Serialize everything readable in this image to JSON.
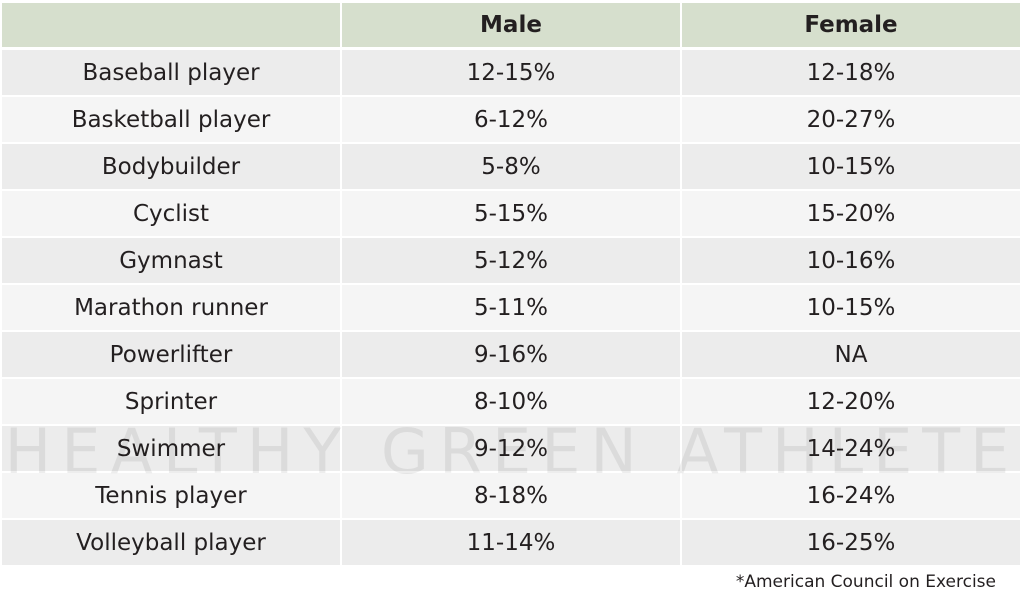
{
  "table": {
    "columns": [
      "Male",
      "Female"
    ],
    "rows": [
      [
        "Baseball player",
        "12-15%",
        "12-18%"
      ],
      [
        "Basketball player",
        "6-12%",
        "20-27%"
      ],
      [
        "Bodybuilder",
        "5-8%",
        "10-15%"
      ],
      [
        "Cyclist",
        "5-15%",
        "15-20%"
      ],
      [
        "Gymnast",
        "5-12%",
        "10-16%"
      ],
      [
        "Marathon runner",
        "5-11%",
        "10-15%"
      ],
      [
        "Powerlifter",
        "9-16%",
        "NA"
      ],
      [
        "Sprinter",
        "8-10%",
        "12-20%"
      ],
      [
        "Swimmer",
        "9-12%",
        "14-24%"
      ],
      [
        "Tennis player",
        "8-18%",
        "16-24%"
      ],
      [
        "Volleyball player",
        "11-14%",
        "16-25%"
      ]
    ]
  },
  "watermark": "HEALTHY GREEN ATHLETE",
  "footnote": "*American Council on Exercise"
}
